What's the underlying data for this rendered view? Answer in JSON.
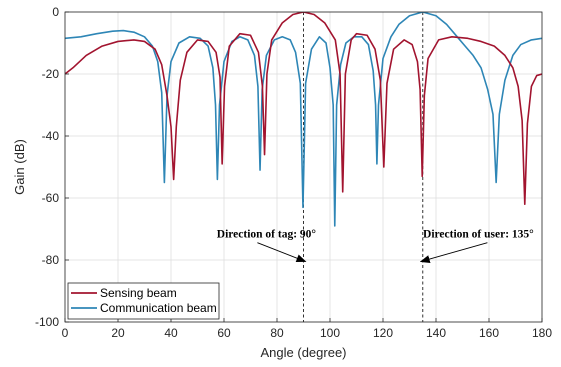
{
  "chart_data": {
    "type": "line",
    "title": "",
    "xlabel": "Angle (degree)",
    "ylabel": "Gain (dB)",
    "xlim": [
      0,
      180
    ],
    "ylim": [
      -100,
      0
    ],
    "xticks": [
      0,
      20,
      40,
      60,
      80,
      100,
      120,
      140,
      160,
      180
    ],
    "yticks": [
      0,
      -20,
      -40,
      -60,
      -80,
      -100
    ],
    "grid": true,
    "legend_placement": "bottom-left",
    "series": [
      {
        "name": "Sensing beam",
        "color": "#a2142f",
        "points": [
          [
            0,
            -20
          ],
          [
            3,
            -18
          ],
          [
            8,
            -14
          ],
          [
            14,
            -11
          ],
          [
            20,
            -9.5
          ],
          [
            26,
            -9
          ],
          [
            30,
            -9.5
          ],
          [
            34,
            -12
          ],
          [
            36.5,
            -17
          ],
          [
            38.5,
            -27
          ],
          [
            40,
            -37
          ],
          [
            41,
            -54
          ],
          [
            42,
            -37
          ],
          [
            43.5,
            -22
          ],
          [
            46,
            -13
          ],
          [
            50,
            -9
          ],
          [
            54,
            -9.5
          ],
          [
            57,
            -13
          ],
          [
            58.5,
            -21
          ],
          [
            59.3,
            -49
          ],
          [
            60.2,
            -24
          ],
          [
            62,
            -11
          ],
          [
            66,
            -7
          ],
          [
            70,
            -7.5
          ],
          [
            73,
            -13
          ],
          [
            74.5,
            -24
          ],
          [
            75.3,
            -46
          ],
          [
            76.2,
            -20
          ],
          [
            78,
            -9
          ],
          [
            82,
            -3.5
          ],
          [
            86,
            -0.8
          ],
          [
            90,
            0
          ],
          [
            94,
            -0.8
          ],
          [
            98,
            -3.5
          ],
          [
            102,
            -9
          ],
          [
            103.8,
            -20
          ],
          [
            104.8,
            -58
          ],
          [
            105.8,
            -20
          ],
          [
            108,
            -9
          ],
          [
            110,
            -7
          ],
          [
            114,
            -7.5
          ],
          [
            117,
            -12
          ],
          [
            119,
            -22
          ],
          [
            120.3,
            -50
          ],
          [
            121.5,
            -23
          ],
          [
            124,
            -12
          ],
          [
            128,
            -9
          ],
          [
            131,
            -10.5
          ],
          [
            133,
            -16
          ],
          [
            134,
            -25
          ],
          [
            134.8,
            -53
          ],
          [
            135.6,
            -27
          ],
          [
            137,
            -15
          ],
          [
            141,
            -9
          ],
          [
            146,
            -8
          ],
          [
            152,
            -8.5
          ],
          [
            157,
            -9.5
          ],
          [
            162,
            -11
          ],
          [
            166,
            -14
          ],
          [
            169,
            -18
          ],
          [
            171,
            -24
          ],
          [
            172.5,
            -35
          ],
          [
            173.5,
            -62
          ],
          [
            174.5,
            -36
          ],
          [
            176,
            -24
          ],
          [
            178,
            -20.5
          ],
          [
            180,
            -20
          ]
        ]
      },
      {
        "name": "Communication beam",
        "color": "#2e86b6",
        "points": [
          [
            0,
            -8.5
          ],
          [
            6,
            -8
          ],
          [
            12,
            -7
          ],
          [
            18,
            -6.2
          ],
          [
            22,
            -6
          ],
          [
            26,
            -6.5
          ],
          [
            30,
            -8
          ],
          [
            33,
            -11
          ],
          [
            35,
            -16
          ],
          [
            36.5,
            -26
          ],
          [
            37.5,
            -55
          ],
          [
            38.5,
            -27
          ],
          [
            40,
            -16
          ],
          [
            43,
            -10
          ],
          [
            47,
            -8
          ],
          [
            51,
            -8.5
          ],
          [
            54,
            -11
          ],
          [
            55.8,
            -18
          ],
          [
            56.8,
            -30
          ],
          [
            57.5,
            -54
          ],
          [
            58.3,
            -30
          ],
          [
            60,
            -16
          ],
          [
            63,
            -9.5
          ],
          [
            66,
            -8
          ],
          [
            69,
            -9
          ],
          [
            71.5,
            -14
          ],
          [
            72.8,
            -24
          ],
          [
            73.6,
            -51
          ],
          [
            74.4,
            -25
          ],
          [
            76,
            -14
          ],
          [
            79,
            -9
          ],
          [
            82,
            -8
          ],
          [
            85,
            -9
          ],
          [
            87,
            -13
          ],
          [
            88.8,
            -23
          ],
          [
            89.8,
            -63
          ],
          [
            90.8,
            -23
          ],
          [
            93,
            -12
          ],
          [
            96,
            -8
          ],
          [
            98.5,
            -10
          ],
          [
            100,
            -18
          ],
          [
            101.2,
            -30
          ],
          [
            101.8,
            -69
          ],
          [
            102.5,
            -30
          ],
          [
            104,
            -17
          ],
          [
            106,
            -10
          ],
          [
            109,
            -8
          ],
          [
            112,
            -8
          ],
          [
            114.5,
            -10.5
          ],
          [
            116.3,
            -19
          ],
          [
            117.2,
            -30
          ],
          [
            117.7,
            -49
          ],
          [
            118.3,
            -30
          ],
          [
            120,
            -15
          ],
          [
            123,
            -8
          ],
          [
            126,
            -4
          ],
          [
            130,
            -1.2
          ],
          [
            135,
            0
          ],
          [
            140,
            -1.2
          ],
          [
            144,
            -4
          ],
          [
            148,
            -8
          ],
          [
            151,
            -11
          ],
          [
            154,
            -14
          ],
          [
            157,
            -18
          ],
          [
            159.5,
            -25
          ],
          [
            161.5,
            -33
          ],
          [
            162.7,
            -55
          ],
          [
            163.9,
            -33
          ],
          [
            166,
            -22
          ],
          [
            169,
            -14
          ],
          [
            172,
            -10.5
          ],
          [
            176,
            -9
          ],
          [
            180,
            -8.5
          ]
        ]
      }
    ],
    "reference_lines": [
      {
        "x": 90,
        "style": "dashed"
      },
      {
        "x": 135,
        "style": "dashed"
      }
    ],
    "annotations": [
      {
        "text": "Direction of tag: 90°",
        "x": 76,
        "y": -71.5,
        "arrow_to": [
          90,
          -80.5
        ]
      },
      {
        "text": "Direction of user: 135°",
        "x": 156,
        "y": -71.5,
        "arrow_to": [
          135,
          -80.5
        ]
      }
    ]
  }
}
